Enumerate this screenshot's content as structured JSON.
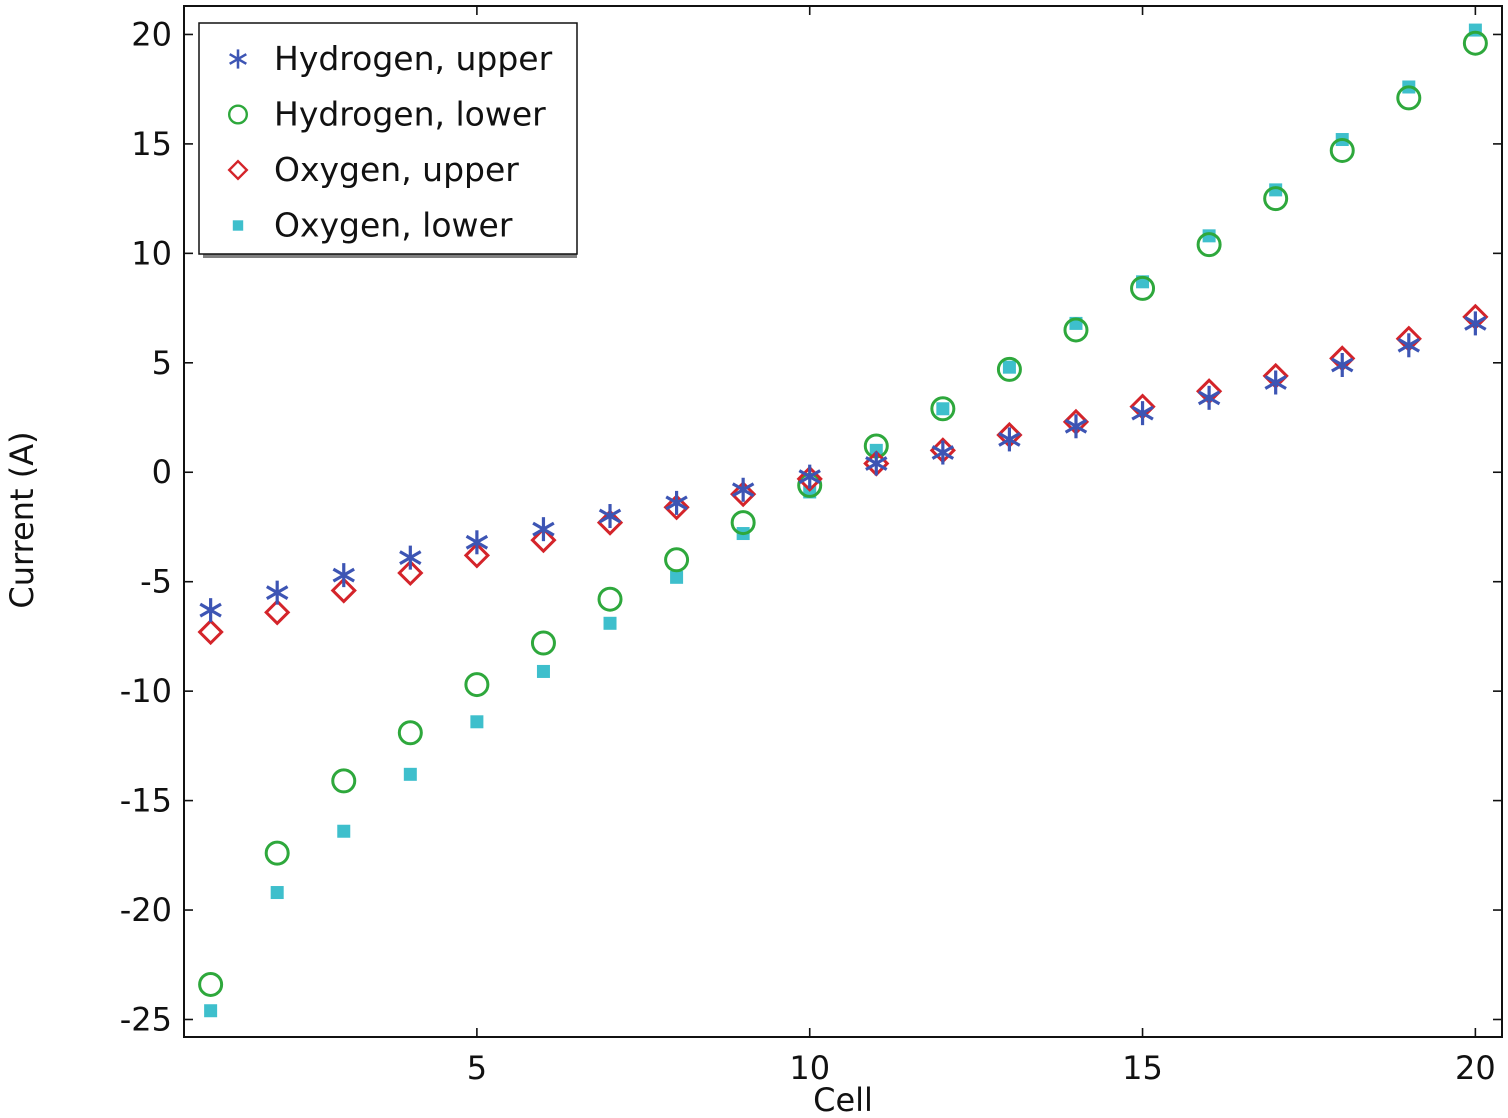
{
  "chart_data": {
    "type": "scatter",
    "title": "",
    "xlabel": "Cell",
    "ylabel": "Current (A)",
    "xlim": [
      0.6,
      20.4
    ],
    "ylim": [
      -25.8,
      21.3
    ],
    "grid": false,
    "legend_position": "top-left",
    "x": [
      1,
      2,
      3,
      4,
      5,
      6,
      7,
      8,
      9,
      10,
      11,
      12,
      13,
      14,
      15,
      16,
      17,
      18,
      19,
      20
    ],
    "xticks": [
      {
        "value": 5,
        "label": "5"
      },
      {
        "value": 10,
        "label": "10"
      },
      {
        "value": 15,
        "label": "15"
      },
      {
        "value": 20,
        "label": "20"
      }
    ],
    "yticks": [
      {
        "value": 20,
        "label": "20"
      },
      {
        "value": 15,
        "label": "15"
      },
      {
        "value": 10,
        "label": "10"
      },
      {
        "value": 5,
        "label": "5"
      },
      {
        "value": 0,
        "label": "0"
      },
      {
        "value": -5,
        "label": "-5"
      },
      {
        "value": -10,
        "label": "-10"
      },
      {
        "value": -15,
        "label": "-15"
      },
      {
        "value": -20,
        "label": "-20"
      },
      {
        "value": -25,
        "label": "-25"
      }
    ],
    "series": [
      {
        "key": "hydrogen-upper",
        "name": "Hydrogen, upper",
        "marker": "asterisk",
        "color": "#3d55b4",
        "values": [
          -6.3,
          -5.5,
          -4.7,
          -3.9,
          -3.2,
          -2.6,
          -2.0,
          -1.4,
          -0.8,
          -0.2,
          0.4,
          0.9,
          1.5,
          2.1,
          2.7,
          3.4,
          4.1,
          4.9,
          5.8,
          6.8
        ]
      },
      {
        "key": "hydrogen-lower",
        "name": "Hydrogen, lower",
        "marker": "circle",
        "color": "#2ea83c",
        "values": [
          -23.4,
          -17.4,
          -14.1,
          -11.9,
          -9.7,
          -7.8,
          -5.8,
          -4.0,
          -2.3,
          -0.6,
          1.2,
          2.9,
          4.7,
          6.5,
          8.4,
          10.4,
          12.5,
          14.7,
          17.1,
          19.6
        ]
      },
      {
        "key": "oxygen-upper",
        "name": "Oxygen, upper",
        "marker": "diamond",
        "color": "#d4242a",
        "values": [
          -7.3,
          -6.4,
          -5.4,
          -4.6,
          -3.8,
          -3.1,
          -2.3,
          -1.6,
          -1.0,
          -0.3,
          0.4,
          1.0,
          1.7,
          2.3,
          3.0,
          3.7,
          4.4,
          5.2,
          6.1,
          7.1
        ]
      },
      {
        "key": "oxygen-lower",
        "name": "Oxygen, lower",
        "marker": "square",
        "color": "#3ebfcc",
        "values": [
          -24.6,
          -19.2,
          -16.4,
          -13.8,
          -11.4,
          -9.1,
          -6.9,
          -4.8,
          -2.8,
          -0.9,
          1.0,
          2.9,
          4.8,
          6.8,
          8.7,
          10.8,
          12.9,
          15.2,
          17.6,
          20.2
        ]
      }
    ]
  }
}
